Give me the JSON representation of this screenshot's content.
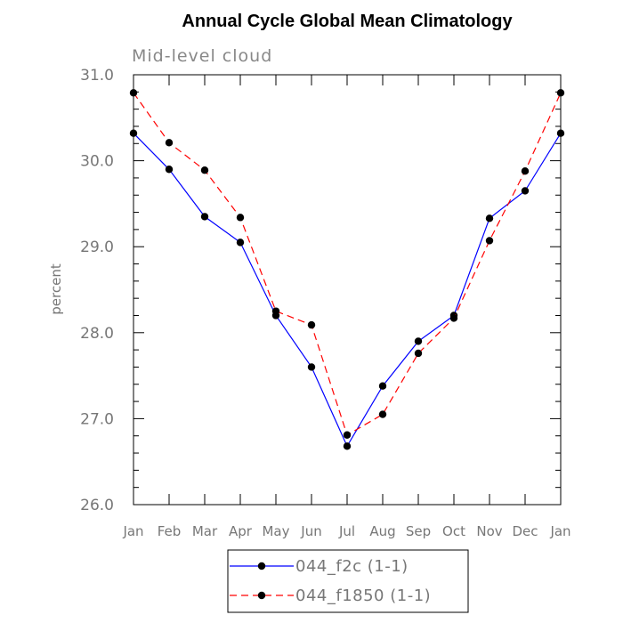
{
  "chart_data": {
    "type": "line",
    "title": "Annual Cycle Global Mean Climatology",
    "subtitle": "Mid-level cloud",
    "xlabel": "",
    "ylabel": "percent",
    "categories": [
      "Jan",
      "Feb",
      "Mar",
      "Apr",
      "May",
      "Jun",
      "Jul",
      "Aug",
      "Sep",
      "Oct",
      "Nov",
      "Dec",
      "Jan"
    ],
    "ylim": [
      26.0,
      31.0
    ],
    "yticks": [
      26.0,
      27.0,
      28.0,
      29.0,
      30.0,
      31.0
    ],
    "ytick_labels": [
      "26.0",
      "27.0",
      "28.0",
      "29.0",
      "30.0",
      "31.0"
    ],
    "grid": false,
    "legend_position": "bottom",
    "series": [
      {
        "name": "044_f2c (1-1)",
        "color": "#0000ff",
        "line_style": "solid",
        "marker": "filled-circle",
        "values": [
          30.32,
          29.9,
          29.35,
          29.05,
          28.2,
          27.6,
          26.68,
          27.38,
          27.9,
          28.2,
          29.33,
          29.65,
          30.32
        ]
      },
      {
        "name": "044_f1850 (1-1)",
        "color": "#ff0000",
        "line_style": "dashed",
        "marker": "filled-circle",
        "values": [
          30.79,
          30.21,
          29.89,
          29.34,
          28.25,
          28.09,
          26.81,
          27.05,
          27.76,
          28.17,
          29.07,
          29.88,
          30.79
        ]
      }
    ]
  }
}
